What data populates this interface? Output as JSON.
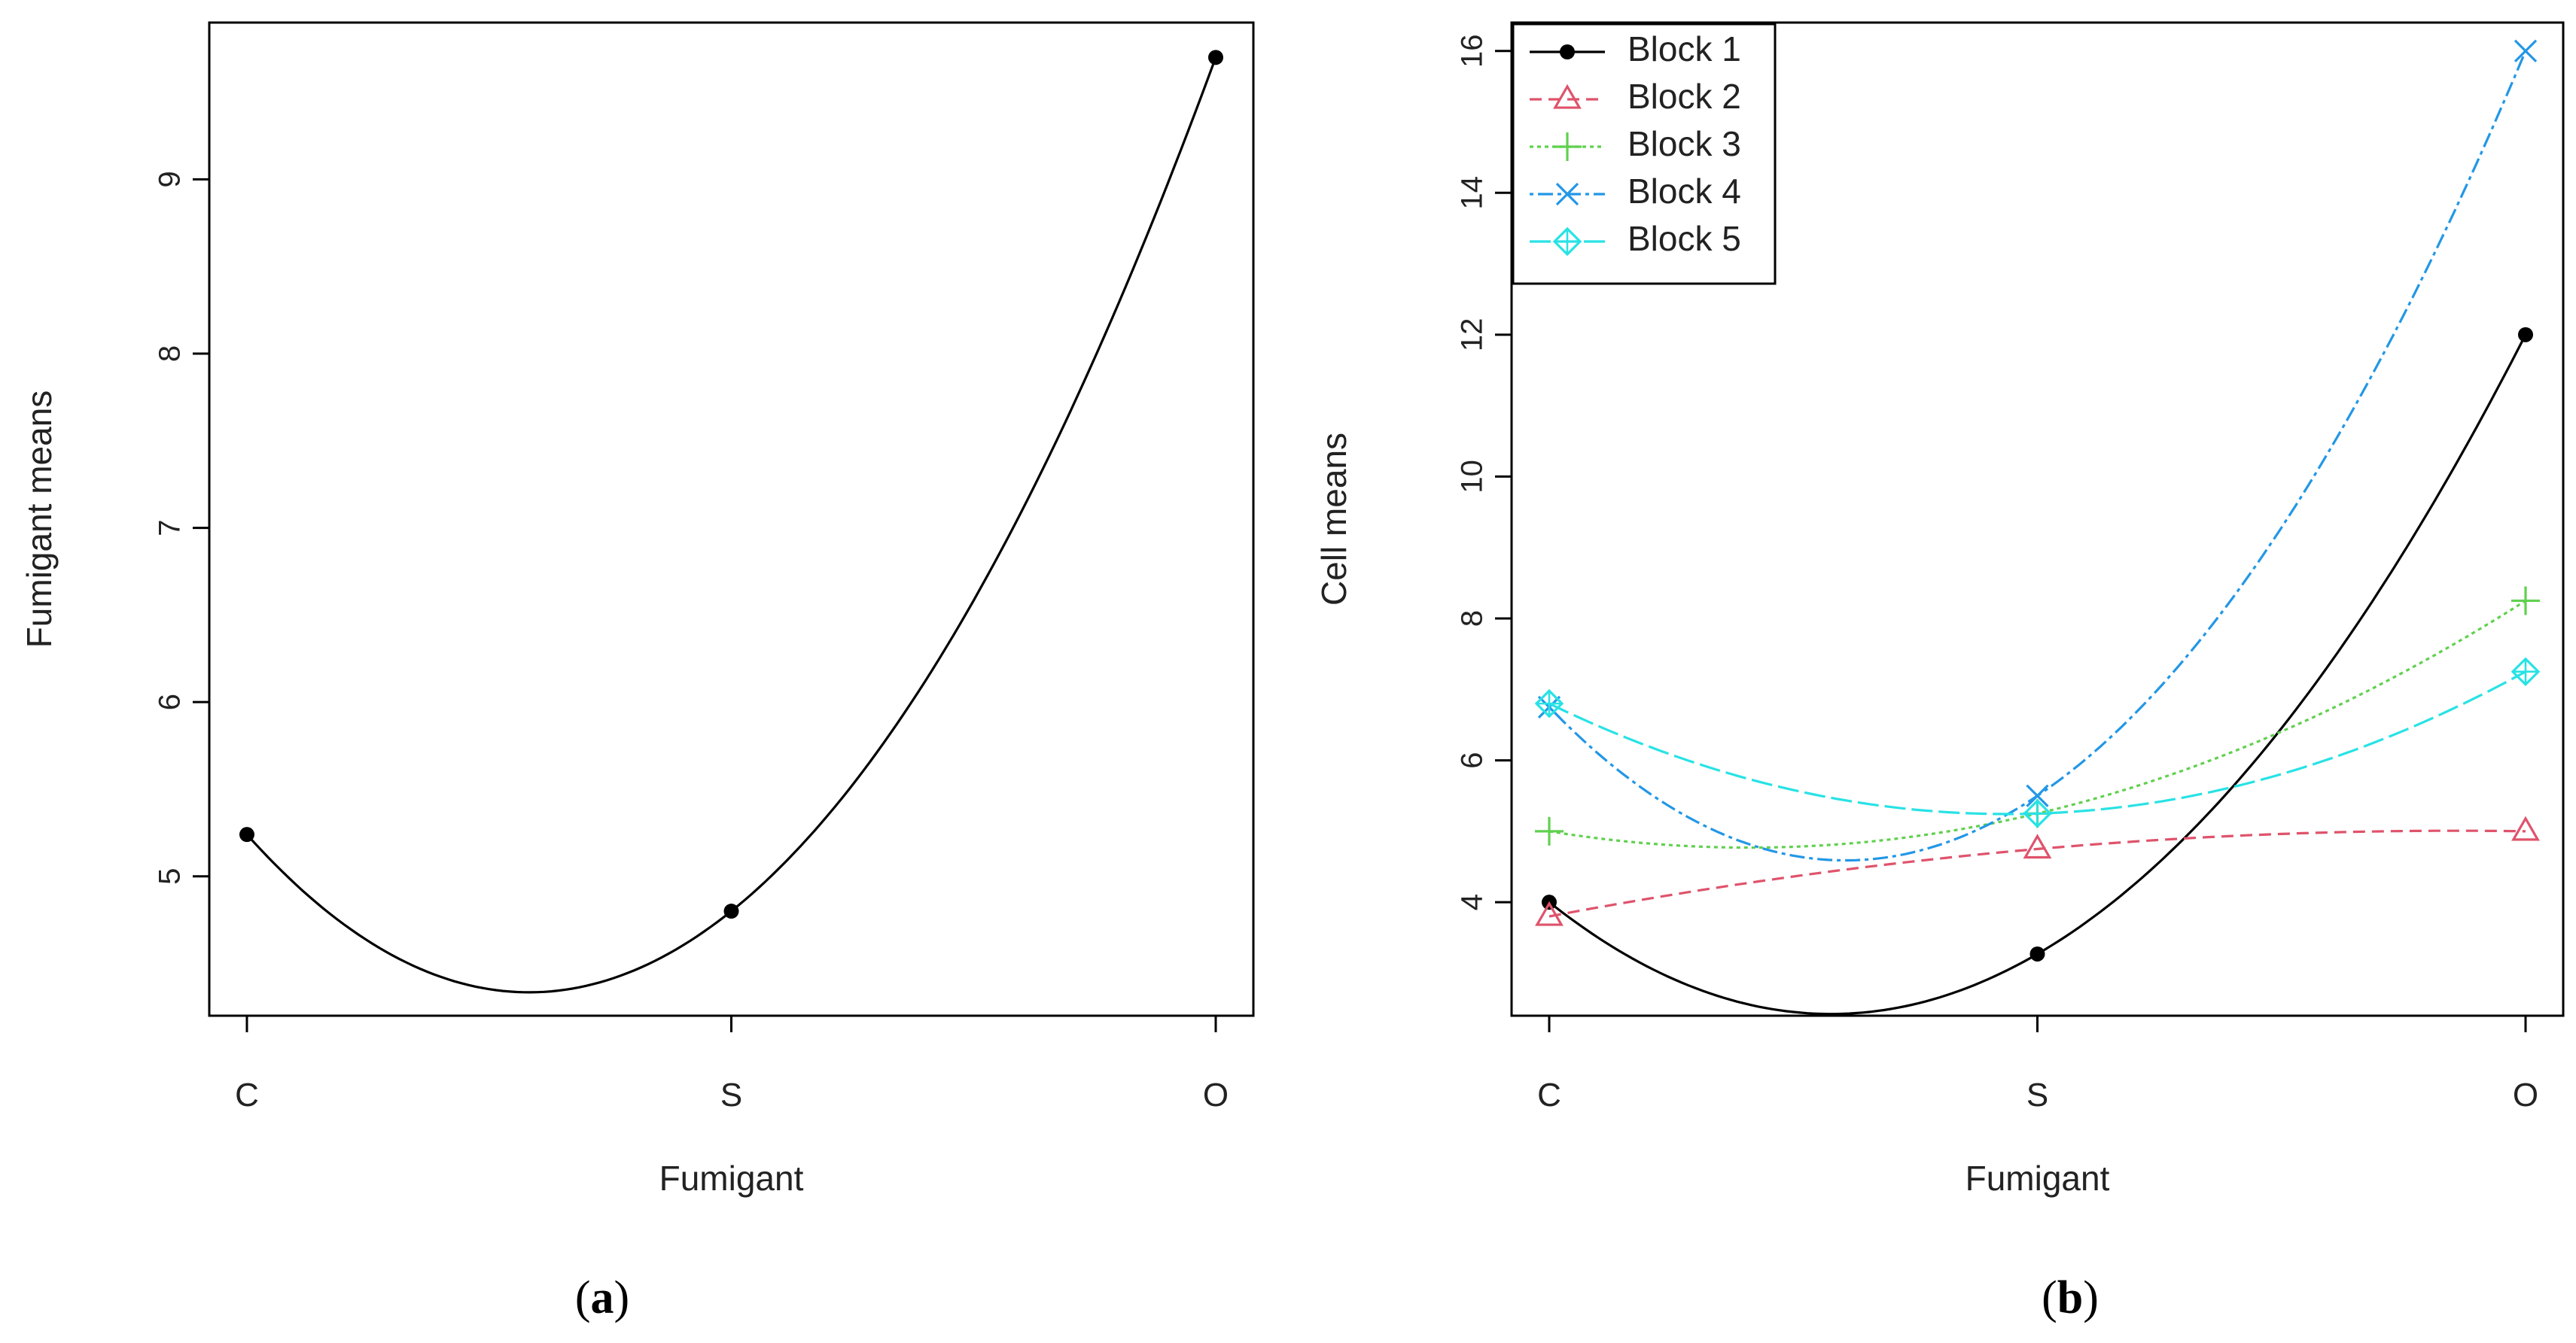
{
  "chart_data": [
    {
      "panel_label": "a",
      "type": "line",
      "xlabel": "Fumigant",
      "ylabel": "Fumigant means",
      "categories": [
        "C",
        "S",
        "O"
      ],
      "ylim": [
        4.2,
        9.9
      ],
      "yticks": [
        5,
        6,
        7,
        8,
        9
      ],
      "grid": false,
      "series": [
        {
          "values": [
            5.24,
            4.8,
            9.7
          ],
          "color": "#000000",
          "dash": "",
          "marker": "dot"
        }
      ]
    },
    {
      "panel_label": "b",
      "type": "line",
      "xlabel": "Fumigant",
      "ylabel": "Cell means",
      "categories": [
        "C",
        "S",
        "O"
      ],
      "ylim": [
        2.4,
        16.4
      ],
      "yticks": [
        4,
        6,
        8,
        10,
        12,
        14,
        16
      ],
      "grid": false,
      "legend_position": "top-left",
      "series": [
        {
          "name": "Block 1",
          "values": [
            4.0,
            3.27,
            12.0
          ],
          "color": "#000000",
          "dash": "",
          "marker": "dot"
        },
        {
          "name": "Block 2",
          "values": [
            3.8,
            4.75,
            5.0
          ],
          "color": "#df536b",
          "dash": "16 9",
          "marker": "triangle"
        },
        {
          "name": "Block 3",
          "values": [
            5.0,
            5.25,
            8.25
          ],
          "color": "#61d04f",
          "dash": "5 5",
          "marker": "plus"
        },
        {
          "name": "Block 4",
          "values": [
            6.75,
            5.5,
            16.0
          ],
          "color": "#2297e6",
          "dash": "5 6 20 6",
          "marker": "cross"
        },
        {
          "name": "Block 5",
          "values": [
            6.8,
            5.25,
            7.25
          ],
          "color": "#28e2e5",
          "dash": "28 8",
          "marker": "diamond"
        }
      ]
    }
  ]
}
